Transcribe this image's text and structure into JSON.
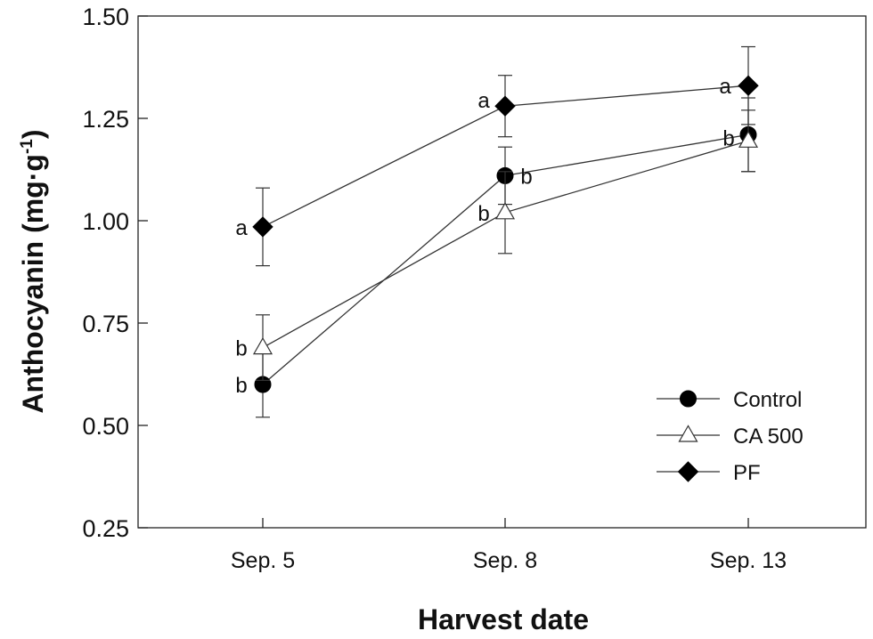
{
  "chart_data": {
    "type": "line",
    "title": "",
    "xlabel": "Harvest date",
    "ylabel_main": "Anthocyanin (mg·g",
    "ylabel_sup": "-1",
    "ylabel_end": ")",
    "categories": [
      "Sep. 5",
      "Sep. 8",
      "Sep. 13"
    ],
    "ylim": [
      0.25,
      1.5
    ],
    "yticks": [
      0.25,
      0.5,
      0.75,
      1.0,
      1.25,
      1.5
    ],
    "ytick_labels": [
      "0.25",
      "0.50",
      "0.75",
      "1.00",
      "1.25",
      "1.50"
    ],
    "grid": false,
    "legend_position": "bottom-right",
    "series": [
      {
        "name": "Control",
        "marker": "circle",
        "color": "#000000",
        "values": [
          0.6,
          1.11,
          1.21
        ],
        "errors": [
          0.08,
          0.07,
          0.09
        ],
        "labels": [
          "b",
          "b",
          "b"
        ]
      },
      {
        "name": "CA 500",
        "marker": "triangle",
        "color": "#ffffff",
        "values": [
          0.69,
          1.02,
          1.195
        ],
        "errors": [
          0.08,
          0.1,
          0.075
        ],
        "labels": [
          "b",
          "b",
          ""
        ]
      },
      {
        "name": "PF",
        "marker": "diamond",
        "color": "#000000",
        "values": [
          0.985,
          1.28,
          1.33
        ],
        "errors": [
          0.095,
          0.075,
          0.095
        ],
        "labels": [
          "a",
          "a",
          "a"
        ]
      }
    ]
  }
}
